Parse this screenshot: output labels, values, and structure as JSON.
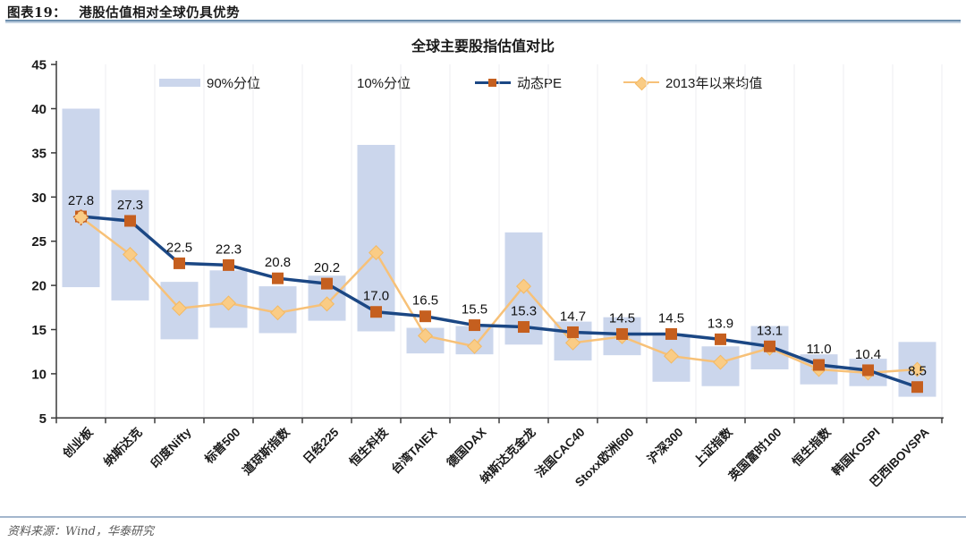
{
  "figure": {
    "header_label": "图表19：",
    "header_title": "港股估值相对全球仍具优势",
    "source_note": "资料来源：Wind，华泰研究",
    "header_rule_color": "#6E8FAE",
    "footer_rule_color": "#A3B6CD"
  },
  "chart_data": {
    "type": "combo",
    "title": "全球主要股指估值对比",
    "categories": [
      "创业板",
      "纳斯达克",
      "印度Nifty",
      "标普500",
      "道琼斯指数",
      "日经225",
      "恒生科技",
      "台湾TAIEX",
      "德国DAX",
      "纳斯达克金龙",
      "法国CAC40",
      "Stoxx欧洲600",
      "沪深300",
      "上证指数",
      "英国富时100",
      "恒生指数",
      "韩国KOSPI",
      "巴西IBOVSPA"
    ],
    "series": [
      {
        "name": "90%分位",
        "role": "range-high",
        "type": "bar",
        "values": [
          40.0,
          30.8,
          20.4,
          21.7,
          19.9,
          21.1,
          35.9,
          15.2,
          15.4,
          26.0,
          15.9,
          16.4,
          14.3,
          13.1,
          15.4,
          12.2,
          11.7,
          13.6
        ]
      },
      {
        "name": "10%分位",
        "role": "range-low",
        "type": "bar",
        "values": [
          19.8,
          18.3,
          13.9,
          15.2,
          14.6,
          16.0,
          14.8,
          12.3,
          12.2,
          13.3,
          11.5,
          12.1,
          9.1,
          8.6,
          10.5,
          8.8,
          8.6,
          7.4
        ]
      },
      {
        "name": "动态PE",
        "role": "line-pe",
        "type": "line",
        "data_labels": true,
        "values": [
          27.8,
          27.3,
          22.5,
          22.3,
          20.8,
          20.2,
          17.0,
          16.5,
          15.5,
          15.3,
          14.7,
          14.5,
          14.5,
          13.9,
          13.1,
          11.0,
          10.4,
          8.5
        ]
      },
      {
        "name": "2013年以来均值",
        "role": "line-mean",
        "type": "line",
        "values": [
          27.7,
          23.5,
          17.4,
          18.0,
          16.9,
          17.9,
          23.7,
          14.3,
          13.1,
          19.9,
          13.5,
          14.2,
          12.0,
          11.3,
          12.9,
          10.5,
          10.1,
          10.5
        ]
      }
    ],
    "ylim": [
      5,
      45
    ],
    "ytick_step": 5,
    "yticks": [
      5,
      10,
      15,
      20,
      25,
      30,
      35,
      40,
      45
    ],
    "grid": "vertical-light",
    "legend_position": "top",
    "colors": {
      "bar_fill": "#CBD6EC",
      "pe_line": "#1B4784",
      "pe_marker": "#C55F1F",
      "mean_line": "#F7C178",
      "mean_marker_fill": "#FACC85",
      "mean_marker_stroke": "#F3B963",
      "axis": "#3A3A3A",
      "gridline": "#EEEEF2",
      "label": "#111111"
    }
  }
}
